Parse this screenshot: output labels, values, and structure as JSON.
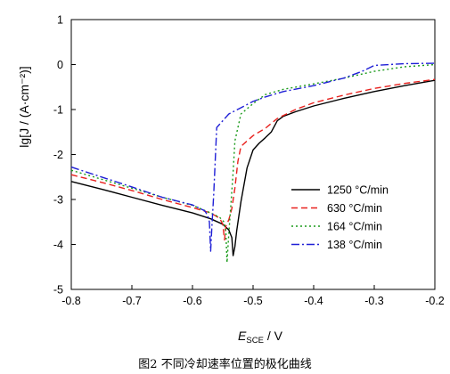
{
  "caption": "图2   不同冷却速率位置的极化曲线",
  "chart_data": {
    "type": "line",
    "ylabel": "lg[J / (A·cm⁻²)]",
    "xlabel_main": "E",
    "xlabel_sub": "SCE",
    "xlabel_unit": " / V",
    "xlim": [
      -0.8,
      -0.2
    ],
    "ylim": [
      -5,
      1
    ],
    "x_ticks": [
      "-0.8",
      "-0.7",
      "-0.6",
      "-0.5",
      "-0.4",
      "-0.3",
      "-0.2"
    ],
    "y_ticks": [
      "1",
      "0",
      "-1",
      "-2",
      "-3",
      "-4",
      "-5"
    ],
    "grid": false,
    "legend_position": "lower-right",
    "series": [
      {
        "name": "1250 °C/min",
        "color": "#000000",
        "dash": "solid",
        "x": [
          -0.8,
          -0.75,
          -0.7,
          -0.65,
          -0.6,
          -0.57,
          -0.55,
          -0.54,
          -0.535,
          -0.533,
          -0.53,
          -0.527,
          -0.52,
          -0.51,
          -0.5,
          -0.49,
          -0.48,
          -0.47,
          -0.46,
          -0.45,
          -0.43,
          -0.4,
          -0.35,
          -0.3,
          -0.25,
          -0.2
        ],
        "y": [
          -2.6,
          -2.77,
          -2.95,
          -3.13,
          -3.3,
          -3.43,
          -3.55,
          -3.68,
          -3.85,
          -4.25,
          -4.05,
          -3.7,
          -3.05,
          -2.3,
          -1.9,
          -1.75,
          -1.63,
          -1.5,
          -1.25,
          -1.15,
          -1.05,
          -0.92,
          -0.75,
          -0.6,
          -0.47,
          -0.35
        ]
      },
      {
        "name": "630 °C/min",
        "color": "#e8211d",
        "dash": "7,4",
        "x": [
          -0.8,
          -0.75,
          -0.7,
          -0.65,
          -0.6,
          -0.57,
          -0.555,
          -0.55,
          -0.547,
          -0.545,
          -0.54,
          -0.535,
          -0.53,
          -0.525,
          -0.52,
          -0.5,
          -0.48,
          -0.46,
          -0.43,
          -0.4,
          -0.35,
          -0.3,
          -0.25,
          -0.2
        ],
        "y": [
          -2.45,
          -2.62,
          -2.8,
          -3.0,
          -3.18,
          -3.3,
          -3.42,
          -3.55,
          -3.9,
          -3.6,
          -3.45,
          -3.2,
          -2.75,
          -2.15,
          -1.82,
          -1.58,
          -1.42,
          -1.2,
          -1.0,
          -0.85,
          -0.68,
          -0.53,
          -0.42,
          -0.33
        ]
      },
      {
        "name": "164 °C/min",
        "color": "#1a9a1a",
        "dash": "2,3",
        "x": [
          -0.8,
          -0.75,
          -0.7,
          -0.65,
          -0.6,
          -0.57,
          -0.555,
          -0.548,
          -0.545,
          -0.543,
          -0.54,
          -0.537,
          -0.533,
          -0.53,
          -0.52,
          -0.5,
          -0.48,
          -0.45,
          -0.4,
          -0.35,
          -0.3,
          -0.25,
          -0.2
        ],
        "y": [
          -2.35,
          -2.55,
          -2.75,
          -2.95,
          -3.13,
          -3.3,
          -3.4,
          -3.5,
          -3.7,
          -4.4,
          -3.75,
          -3.2,
          -2.4,
          -1.7,
          -1.1,
          -0.87,
          -0.67,
          -0.55,
          -0.43,
          -0.3,
          -0.15,
          -0.05,
          0.0
        ]
      },
      {
        "name": "138 °C/min",
        "color": "#1f1fd6",
        "dash": "9,3,2,3",
        "x": [
          -0.8,
          -0.75,
          -0.7,
          -0.65,
          -0.6,
          -0.58,
          -0.575,
          -0.572,
          -0.57,
          -0.568,
          -0.565,
          -0.56,
          -0.55,
          -0.54,
          -0.52,
          -0.5,
          -0.48,
          -0.45,
          -0.4,
          -0.35,
          -0.32,
          -0.3,
          -0.25,
          -0.2
        ],
        "y": [
          -2.28,
          -2.5,
          -2.72,
          -2.95,
          -3.12,
          -3.25,
          -3.35,
          -3.5,
          -4.15,
          -3.6,
          -2.9,
          -1.4,
          -1.25,
          -1.1,
          -0.96,
          -0.82,
          -0.72,
          -0.6,
          -0.47,
          -0.3,
          -0.15,
          -0.02,
          0.02,
          0.03
        ]
      }
    ]
  }
}
